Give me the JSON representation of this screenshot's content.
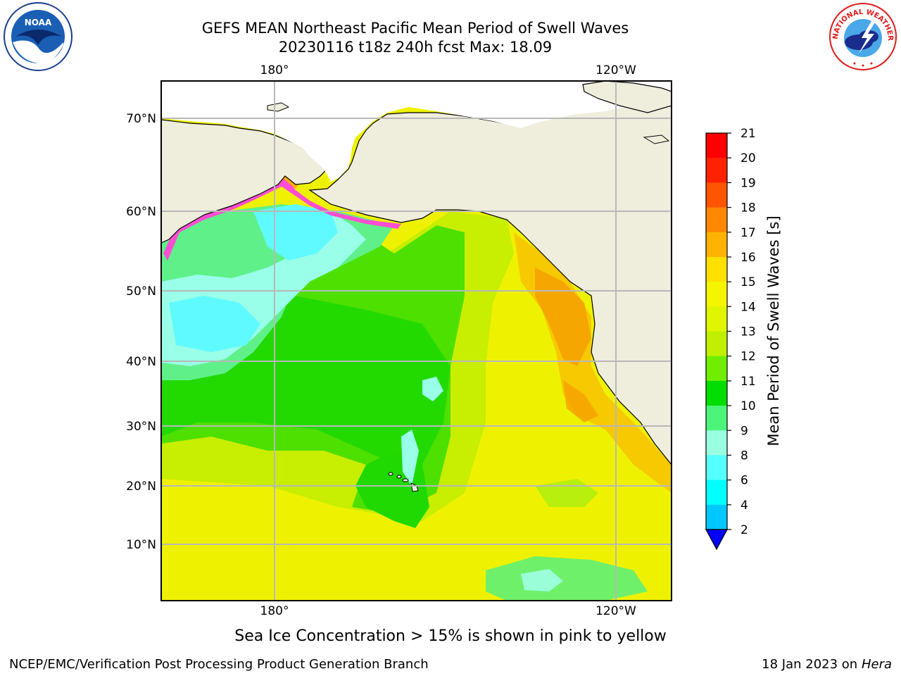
{
  "header": {
    "title_line1": "GEFS MEAN Northeast Pacific Mean Period of Swell Waves",
    "title_line2": "20230116 t18z 240h fcst   Max: 18.09"
  },
  "logos": {
    "noaa": {
      "text": "NOAA"
    },
    "nws": {
      "text": "NATIONAL WEATHER SERVICE"
    }
  },
  "map": {
    "lat_labels": [
      "70°N",
      "60°N",
      "50°N",
      "40°N",
      "30°N",
      "20°N",
      "10°N"
    ],
    "lon_labels_top": [
      "180°",
      "120°W"
    ],
    "lon_labels_bottom": [
      "180°",
      "120°W"
    ],
    "gridlines": true
  },
  "colorbar": {
    "label": "Mean Period of Swell Waves [s]",
    "ticks": [
      "21",
      "20",
      "19",
      "18",
      "17",
      "16",
      "15",
      "14",
      "13",
      "12",
      "11",
      "10",
      "9",
      "8",
      "6",
      "4",
      "2"
    ],
    "colors": [
      "#ff0000",
      "#ff2200",
      "#ff5500",
      "#ff8800",
      "#ffb300",
      "#ffe000",
      "#f5f500",
      "#e0f500",
      "#c0f000",
      "#70ee00",
      "#00dd00",
      "#4cf57a",
      "#9affe0",
      "#55ffff",
      "#00ffff",
      "#00c8ff",
      "#0070ff"
    ],
    "under_color": "#0000ff"
  },
  "caption": "Sea Ice Concentration > 15% is shown in pink to yellow",
  "footer": {
    "left": "NCEP/EMC/Verification Post Processing Product Generation Branch",
    "right_prefix": "18 Jan 2023 on ",
    "right_host": "Hera"
  }
}
